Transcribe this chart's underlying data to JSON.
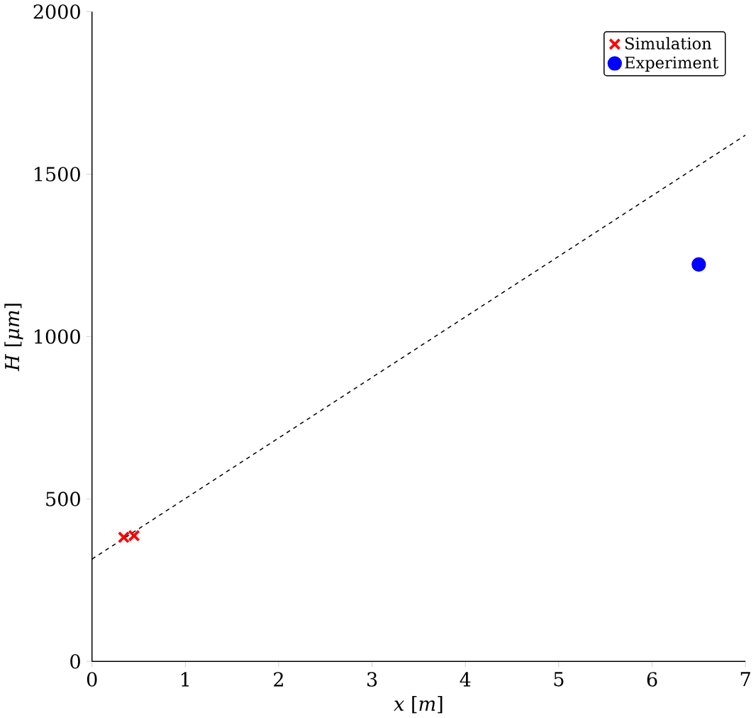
{
  "chart_data": {
    "type": "scatter",
    "xlabel": "*x* [*m*]",
    "ylabel": "*H* [*μm*]",
    "xlim": [
      0,
      7
    ],
    "ylim": [
      0,
      2000
    ],
    "xticks": [
      0,
      1,
      2,
      3,
      4,
      5,
      6,
      7
    ],
    "yticks": [
      0,
      500,
      1000,
      1500,
      2000
    ],
    "grid": false,
    "legend": "top right",
    "series": [
      {
        "name": "Simulation",
        "color": "#ff0000",
        "marker": "cross",
        "x": [
          0.34,
          0.45
        ],
        "values": [
          382,
          387
        ]
      },
      {
        "name": "Experiment",
        "color": "#0000ff",
        "marker": "circle",
        "x": [
          6.5
        ],
        "values": [
          1222
        ]
      },
      {
        "type": "line",
        "color": "#000000",
        "line_style": "dashed",
        "marker": "none",
        "x": [
          0,
          7
        ],
        "values": [
          315,
          1620
        ]
      }
    ]
  }
}
